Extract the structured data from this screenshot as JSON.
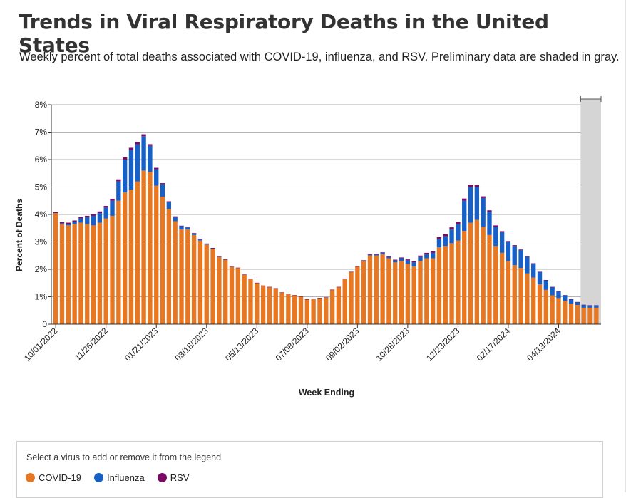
{
  "header": {
    "title": "Trends in Viral Respiratory Deaths in the United States",
    "subtitle": "Weekly percent of total deaths associated with COVID-19, influenza, and RSV. Preliminary data are shaded in gray."
  },
  "legend": {
    "prompt": "Select a virus to add or remove it from the legend",
    "items": [
      {
        "label": "COVID-19",
        "color": "#e87722"
      },
      {
        "label": "Influenza",
        "color": "#1660c8"
      },
      {
        "label": "RSV",
        "color": "#7b0a63"
      }
    ]
  },
  "chart_data": {
    "type": "bar",
    "stacked": true,
    "title": "",
    "xlabel": "Week Ending",
    "ylabel": "Percent of Deaths",
    "ylim": [
      0,
      8
    ],
    "y_ticks": [
      "0",
      "1%",
      "2%",
      "3%",
      "4%",
      "5%",
      "6%",
      "7%",
      "8%"
    ],
    "x_tick_labels": [
      {
        "index": 0,
        "label": "10/01/2022"
      },
      {
        "index": 8,
        "label": "11/26/2022"
      },
      {
        "index": 16,
        "label": "01/21/2023"
      },
      {
        "index": 24,
        "label": "03/18/2023"
      },
      {
        "index": 32,
        "label": "05/13/2023"
      },
      {
        "index": 40,
        "label": "07/08/2023"
      },
      {
        "index": 48,
        "label": "09/02/2023"
      },
      {
        "index": 56,
        "label": "10/28/2023"
      },
      {
        "index": 64,
        "label": "12/23/2023"
      },
      {
        "index": 72,
        "label": "02/17/2024"
      },
      {
        "index": 80,
        "label": "04/13/2024"
      }
    ],
    "preliminary_weeks": 3,
    "grid": true,
    "legend_position": "bottom",
    "series": [
      {
        "name": "COVID-19",
        "color": "#e87722",
        "values": [
          4.05,
          3.65,
          3.6,
          3.65,
          3.7,
          3.65,
          3.6,
          3.7,
          3.85,
          3.95,
          4.5,
          4.8,
          4.9,
          5.2,
          5.6,
          5.55,
          5.05,
          4.65,
          4.2,
          3.75,
          3.45,
          3.45,
          3.25,
          3.05,
          2.9,
          2.75,
          2.45,
          2.35,
          2.1,
          2.05,
          1.8,
          1.65,
          1.5,
          1.4,
          1.35,
          1.3,
          1.15,
          1.1,
          1.05,
          1.0,
          0.9,
          0.92,
          0.95,
          0.97,
          1.25,
          1.35,
          1.65,
          1.9,
          2.1,
          2.3,
          2.5,
          2.5,
          2.55,
          2.4,
          2.25,
          2.3,
          2.2,
          2.1,
          2.3,
          2.4,
          2.4,
          2.8,
          2.85,
          2.95,
          3.05,
          3.4,
          3.7,
          3.8,
          3.55,
          3.25,
          2.85,
          2.6,
          2.3,
          2.15,
          2.05,
          1.85,
          1.7,
          1.45,
          1.25,
          1.05,
          0.95,
          0.85,
          0.75,
          0.7,
          0.6,
          0.6,
          0.6
        ]
      },
      {
        "name": "Influenza",
        "color": "#1660c8",
        "values": [
          0.0,
          0.03,
          0.05,
          0.08,
          0.15,
          0.25,
          0.35,
          0.35,
          0.4,
          0.55,
          0.7,
          1.2,
          1.45,
          1.35,
          1.25,
          0.95,
          0.6,
          0.45,
          0.25,
          0.15,
          0.12,
          0.08,
          0.05,
          0.04,
          0.03,
          0.02,
          0.02,
          0.01,
          0.01,
          0.0,
          0.0,
          0.0,
          0.0,
          0.0,
          0.0,
          0.0,
          0.0,
          0.0,
          0.0,
          0.0,
          0.0,
          0.0,
          0.0,
          0.0,
          0.0,
          0.0,
          0.0,
          0.0,
          0.0,
          0.02,
          0.03,
          0.05,
          0.05,
          0.05,
          0.07,
          0.1,
          0.12,
          0.15,
          0.15,
          0.15,
          0.2,
          0.3,
          0.35,
          0.5,
          0.6,
          1.1,
          1.3,
          1.2,
          1.05,
          0.85,
          0.7,
          0.75,
          0.7,
          0.7,
          0.65,
          0.6,
          0.5,
          0.45,
          0.35,
          0.3,
          0.25,
          0.2,
          0.15,
          0.1,
          0.1,
          0.08,
          0.08
        ]
      },
      {
        "name": "RSV",
        "color": "#7b0a63",
        "values": [
          0.04,
          0.04,
          0.05,
          0.05,
          0.05,
          0.05,
          0.06,
          0.06,
          0.06,
          0.07,
          0.08,
          0.08,
          0.08,
          0.08,
          0.07,
          0.06,
          0.05,
          0.04,
          0.03,
          0.03,
          0.02,
          0.02,
          0.02,
          0.02,
          0.01,
          0.01,
          0.01,
          0.01,
          0.01,
          0.01,
          0.01,
          0.01,
          0.01,
          0.01,
          0.01,
          0.01,
          0.01,
          0.01,
          0.01,
          0.01,
          0.01,
          0.01,
          0.01,
          0.01,
          0.01,
          0.01,
          0.01,
          0.01,
          0.01,
          0.01,
          0.02,
          0.02,
          0.02,
          0.03,
          0.03,
          0.03,
          0.04,
          0.05,
          0.05,
          0.05,
          0.06,
          0.07,
          0.08,
          0.08,
          0.08,
          0.08,
          0.08,
          0.07,
          0.06,
          0.05,
          0.05,
          0.04,
          0.03,
          0.03,
          0.02,
          0.02,
          0.02,
          0.01,
          0.01,
          0.01,
          0.01,
          0.01,
          0.01,
          0.01,
          0.01,
          0.01,
          0.01
        ]
      }
    ]
  }
}
